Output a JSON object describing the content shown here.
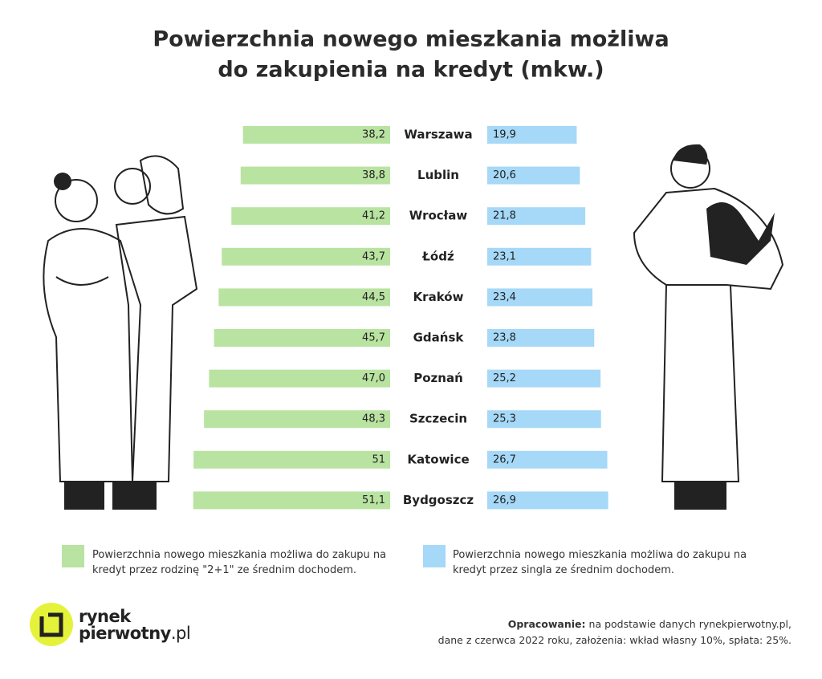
{
  "chart_data": {
    "type": "butterfly",
    "title": [
      "Powierzchnia nowego mieszkania możliwa",
      "do zakupienia na kredyt (mkw.)"
    ],
    "categories": [
      "Warszawa",
      "Lublin",
      "Wrocław",
      "Łódź",
      "Kraków",
      "Gdańsk",
      "Poznań",
      "Szczecin",
      "Katowice",
      "Bydgoszcz"
    ],
    "series": [
      {
        "name": "Powierzchnia nowego mieszkania możliwa do zakupu na kredyt przez rodzinę \"2+1\" ze średnim dochodem.",
        "color": "#b9e3a1",
        "side": "left",
        "values": [
          38.2,
          38.8,
          41.2,
          43.7,
          44.5,
          45.7,
          47.0,
          48.3,
          51,
          51.1
        ],
        "value_labels": [
          "38,2",
          "38,8",
          "41,2",
          "43,7",
          "44,5",
          "45,7",
          "47,0",
          "48,3",
          "51",
          "51,1"
        ]
      },
      {
        "name": "Powierzchnia nowego mieszkania możliwa do zakupu na kredyt przez singla ze średnim dochodem.",
        "color": "#a6d8f7",
        "side": "right",
        "values": [
          19.9,
          20.6,
          21.8,
          23.1,
          23.4,
          23.8,
          25.2,
          25.3,
          26.7,
          26.9
        ],
        "value_labels": [
          "19,9",
          "20,6",
          "21,8",
          "23,1",
          "23,4",
          "23,8",
          "25,2",
          "25,3",
          "26,7",
          "26,9"
        ]
      }
    ]
  },
  "logo": {
    "line1": "rynek",
    "line2": "pierwotny",
    "suffix": ".pl"
  },
  "source": {
    "label": "Opracowanie:",
    "lines": [
      "na podstawie danych rynekpierwotny.pl,",
      "dane z czerwca 2022 roku, założenia: wkład własny 10%, spłata: 25%."
    ]
  }
}
